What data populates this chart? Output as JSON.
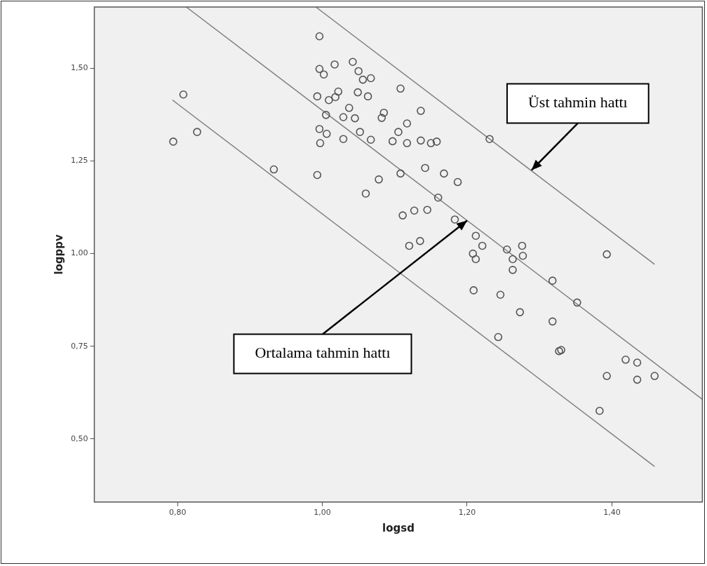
{
  "chart_data": {
    "type": "scatter",
    "xlabel": "logsd",
    "ylabel": "logppv",
    "xlim": [
      0.685,
      1.525
    ],
    "ylim": [
      0.33,
      1.665
    ],
    "xticks": [
      {
        "value": 0.8,
        "label": "0,80"
      },
      {
        "value": 1.0,
        "label": "1,00"
      },
      {
        "value": 1.2,
        "label": "1,20"
      },
      {
        "value": 1.4,
        "label": "1,40"
      }
    ],
    "yticks": [
      {
        "value": 0.5,
        "label": "0,50"
      },
      {
        "value": 0.75,
        "label": "0,75"
      },
      {
        "value": 1.0,
        "label": "1,00"
      },
      {
        "value": 1.25,
        "label": "1,25"
      },
      {
        "value": 1.5,
        "label": "1,50"
      }
    ],
    "grid": false,
    "legend": false,
    "series": [
      {
        "type": "scatter",
        "color": "#555555",
        "marker": "circle",
        "x": [
          0.794,
          0.808,
          0.827,
          0.933,
          0.996,
          0.996,
          1.002,
          0.993,
          1.017,
          1.009,
          1.018,
          1.022,
          1.005,
          1.029,
          0.996,
          1.006,
          0.997,
          1.029,
          0.993,
          1.037,
          1.042,
          1.05,
          1.056,
          1.067,
          1.108,
          1.049,
          1.063,
          1.045,
          1.085,
          1.082,
          1.136,
          1.117,
          1.105,
          1.052,
          1.067,
          1.097,
          1.117,
          1.136,
          1.15,
          1.158,
          1.231,
          1.142,
          1.168,
          1.108,
          1.187,
          1.078,
          1.06,
          1.16,
          1.111,
          1.127,
          1.145,
          1.183,
          1.212,
          1.221,
          1.255,
          1.276,
          1.135,
          1.12,
          1.208,
          1.212,
          1.277,
          1.263,
          1.263,
          1.393,
          1.209,
          1.246,
          1.318,
          1.273,
          1.352,
          1.318,
          1.243,
          1.33,
          1.419,
          1.435,
          1.393,
          1.435,
          1.459,
          1.383,
          1.327
        ],
        "values": [
          1.302,
          1.429,
          1.328,
          1.227,
          1.586,
          1.498,
          1.483,
          1.424,
          1.51,
          1.414,
          1.422,
          1.437,
          1.374,
          1.368,
          1.336,
          1.323,
          1.298,
          1.309,
          1.212,
          1.393,
          1.517,
          1.492,
          1.469,
          1.473,
          1.445,
          1.435,
          1.424,
          1.365,
          1.38,
          1.366,
          1.385,
          1.351,
          1.328,
          1.328,
          1.307,
          1.303,
          1.298,
          1.305,
          1.298,
          1.302,
          1.309,
          1.231,
          1.216,
          1.216,
          1.193,
          1.2,
          1.162,
          1.151,
          1.103,
          1.116,
          1.118,
          1.092,
          1.048,
          1.021,
          1.011,
          1.021,
          1.034,
          1.021,
          1.0,
          0.985,
          0.994,
          0.985,
          0.956,
          0.998,
          0.901,
          0.889,
          0.927,
          0.842,
          0.868,
          0.817,
          0.775,
          0.74,
          0.714,
          0.706,
          0.67,
          0.66,
          0.67,
          0.576,
          0.737
        ]
      },
      {
        "type": "line",
        "color": "#808080",
        "x": [
          0.991,
          1.459
        ],
        "values": [
          1.665,
          0.971
        ]
      },
      {
        "type": "line",
        "color": "#808080",
        "x": [
          0.812,
          1.525
        ],
        "values": [
          1.665,
          0.607
        ]
      },
      {
        "type": "line",
        "color": "#808080",
        "x": [
          0.793,
          1.459
        ],
        "values": [
          1.414,
          0.426
        ]
      }
    ],
    "annotations": [
      {
        "text": "Üst tahmin hattı",
        "x": 1.289,
        "y": 1.225
      },
      {
        "text": "Ortalama tahmin hattı",
        "x": 1.2,
        "y": 1.089
      }
    ]
  }
}
